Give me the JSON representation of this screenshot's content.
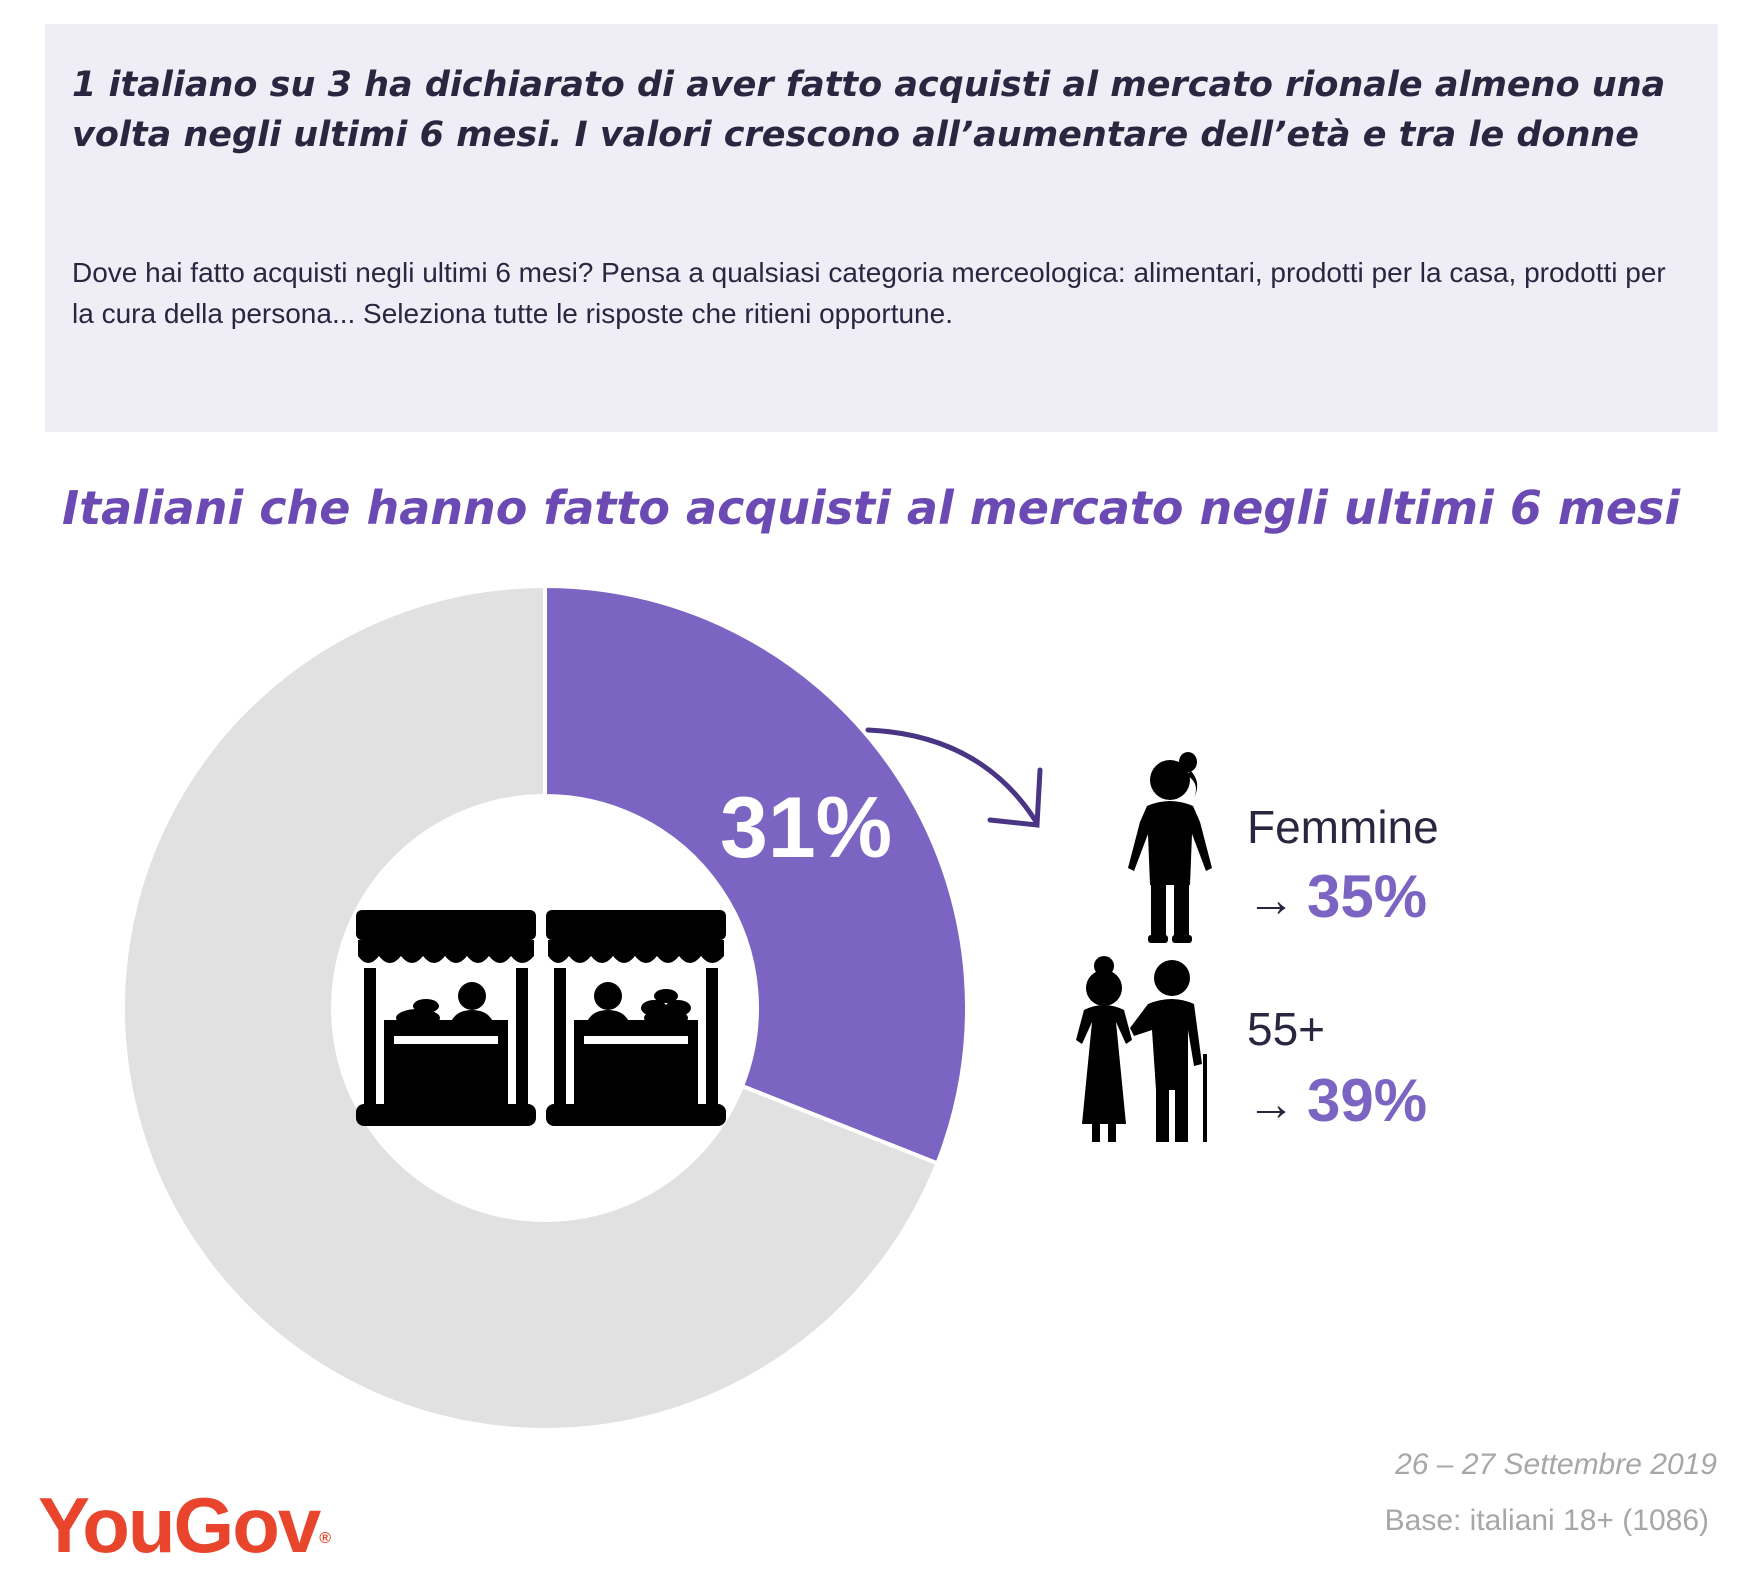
{
  "header": {
    "headline": "1 italiano su 3 ha dichiarato di aver fatto acquisti al mercato rionale almeno una volta negli ultimi 6 mesi. I valori crescono all’aumentare dell’età e tra le donne",
    "question": "Dove hai fatto acquisti negli ultimi 6 mesi? Pensa a qualsiasi categoria merceologica: alimentari, prodotti per la casa, prodotti per la cura della persona... Seleziona tutte le risposte che ritieni opportune."
  },
  "chart_data": {
    "type": "pie",
    "title": "Italiani che hanno fatto acquisti al mercato negli ultimi 6 mesi",
    "values": [
      31,
      69
    ],
    "value_label": "31%",
    "colors": {
      "highlight": "#7b64c2",
      "rest": "#e1e1e1"
    },
    "breakdown": [
      {
        "label": "Femmine",
        "arrow": "→",
        "value": 35,
        "value_label": "35%",
        "icon": "woman-icon"
      },
      {
        "label": "55+",
        "arrow": "→",
        "value": 39,
        "value_label": "39%",
        "icon": "elderly-couple-icon"
      }
    ]
  },
  "footer": {
    "date": "26 – 27 Settembre 2019",
    "base": "Base: italiani 18+ (1086)",
    "logo_text": "YouGov",
    "logo_mark": "®"
  },
  "icons": {
    "center": "market-stalls-icon",
    "pointer": "curved-arrow-icon"
  },
  "colors": {
    "accent": "#7b64c2",
    "title": "#6b4ab3",
    "logo": "#e8452c",
    "panel": "#efedf6"
  }
}
